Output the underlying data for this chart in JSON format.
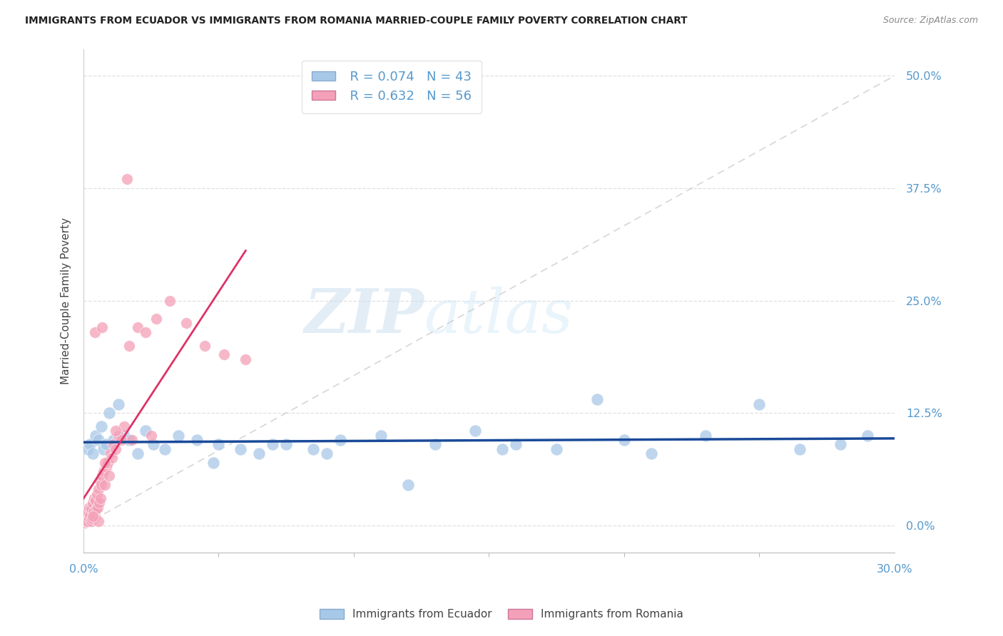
{
  "title": "IMMIGRANTS FROM ECUADOR VS IMMIGRANTS FROM ROMANIA MARRIED-COUPLE FAMILY POVERTY CORRELATION CHART",
  "source": "Source: ZipAtlas.com",
  "ylabel": "Married-Couple Family Poverty",
  "ytick_values": [
    0.0,
    12.5,
    25.0,
    37.5,
    50.0
  ],
  "xlim": [
    0.0,
    30.0
  ],
  "ylim": [
    -3.0,
    53.0
  ],
  "ecuador_color": "#a8c8e8",
  "romania_color": "#f4a0b8",
  "ecuador_line_color": "#1a4a99",
  "romania_line_color": "#dd3366",
  "diagonal_color": "#cccccc",
  "grid_color": "#dddddd",
  "title_color": "#222222",
  "source_color": "#888888",
  "axis_label_color": "#5599cc",
  "legend_r_ecuador": "R = 0.074",
  "legend_n_ecuador": "N = 43",
  "legend_r_romania": "R = 0.632",
  "legend_n_romania": "N = 56",
  "watermark_zip": "ZIP",
  "watermark_atlas": "atlas",
  "background_color": "#ffffff",
  "ecuador_x": [
    0.15,
    0.25,
    0.35,
    0.45,
    0.55,
    0.65,
    0.75,
    0.85,
    0.95,
    1.1,
    1.3,
    1.5,
    1.7,
    2.0,
    2.3,
    2.6,
    3.0,
    3.5,
    4.2,
    5.0,
    5.8,
    6.5,
    7.5,
    8.5,
    9.5,
    11.0,
    13.0,
    14.5,
    16.0,
    17.5,
    19.0,
    21.0,
    23.0,
    25.0,
    26.5,
    28.0,
    29.0,
    15.5,
    20.0,
    12.0,
    4.8,
    7.0,
    9.0
  ],
  "ecuador_y": [
    8.5,
    9.0,
    8.0,
    10.0,
    9.5,
    11.0,
    8.5,
    9.0,
    12.5,
    9.5,
    13.5,
    10.0,
    9.5,
    8.0,
    10.5,
    9.0,
    8.5,
    10.0,
    9.5,
    9.0,
    8.5,
    8.0,
    9.0,
    8.5,
    9.5,
    10.0,
    9.0,
    10.5,
    9.0,
    8.5,
    14.0,
    8.0,
    10.0,
    13.5,
    8.5,
    9.0,
    10.0,
    8.5,
    9.5,
    4.5,
    7.0,
    9.0,
    8.0
  ],
  "romania_x": [
    0.05,
    0.08,
    0.1,
    0.12,
    0.15,
    0.17,
    0.2,
    0.22,
    0.25,
    0.28,
    0.3,
    0.33,
    0.35,
    0.38,
    0.4,
    0.43,
    0.45,
    0.48,
    0.5,
    0.53,
    0.55,
    0.58,
    0.6,
    0.63,
    0.65,
    0.7,
    0.75,
    0.8,
    0.85,
    0.9,
    0.95,
    1.0,
    1.05,
    1.1,
    1.2,
    1.3,
    1.4,
    1.5,
    1.7,
    2.0,
    2.3,
    2.7,
    3.2,
    3.8,
    4.5,
    5.2,
    6.0,
    1.6,
    0.42,
    0.68,
    0.55,
    0.35,
    1.2,
    0.8,
    1.8,
    2.5
  ],
  "romania_y": [
    0.3,
    0.5,
    0.8,
    1.0,
    0.5,
    1.5,
    0.8,
    2.0,
    1.2,
    0.5,
    1.8,
    0.8,
    2.5,
    1.5,
    3.0,
    1.0,
    2.8,
    1.8,
    3.5,
    2.0,
    4.0,
    2.5,
    5.0,
    3.0,
    4.5,
    5.5,
    6.0,
    4.5,
    6.5,
    7.0,
    5.5,
    8.0,
    7.5,
    9.0,
    8.5,
    10.0,
    9.5,
    11.0,
    20.0,
    22.0,
    21.5,
    23.0,
    25.0,
    22.5,
    20.0,
    19.0,
    18.5,
    38.5,
    21.5,
    22.0,
    0.5,
    1.0,
    10.5,
    7.0,
    9.5,
    10.0
  ]
}
